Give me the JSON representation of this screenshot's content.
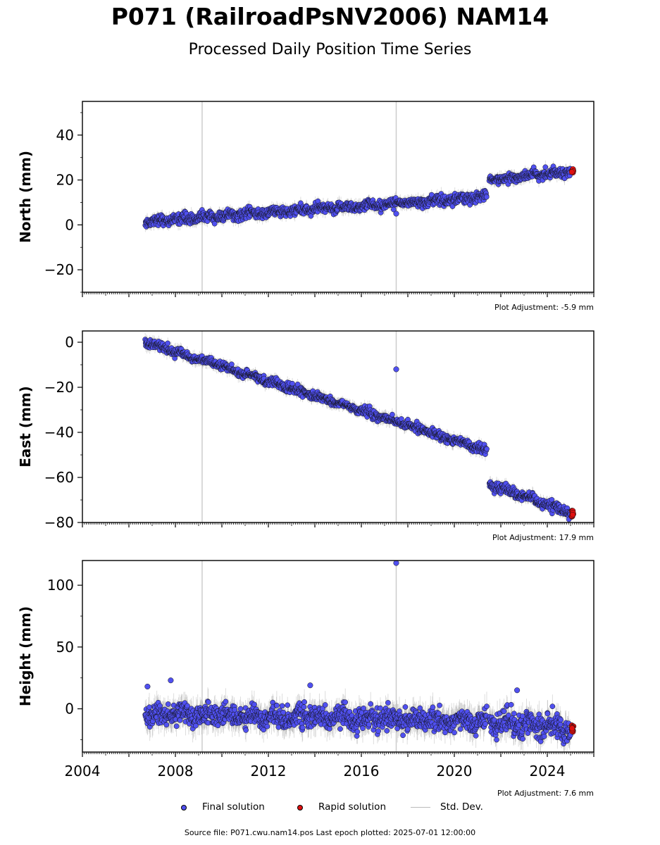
{
  "title": "P071 (RailroadPsNV2006) NAM14",
  "subtitle": "Processed Daily Position Time Series",
  "legend": {
    "final": "Final solution",
    "rapid": "Rapid solution",
    "std": "Std. Dev."
  },
  "footer": "Source file: P071.cwu.nam14.pos  Last epoch plotted: 2025-07-01 12:00:00",
  "colors": {
    "final": "#5050f0",
    "rapid": "#e01010",
    "std": "#aaaaaa",
    "event_line": "#cccccc"
  },
  "chart_data": [
    {
      "type": "scatter",
      "ylabel": "North (mm)",
      "ylim": [
        -30,
        55
      ],
      "yticks": [
        -20,
        0,
        20,
        40
      ],
      "xlim": [
        2004,
        2026
      ],
      "adjustment": "Plot Adjustment: -5.9 mm",
      "event_lines": [
        2009.15,
        2017.5
      ],
      "series": [
        {
          "name": "Final solution",
          "segments": [
            {
              "x0": 2006.7,
              "y0": 1.5,
              "x1": 2021.4,
              "y1": 12.5,
              "noise": 1.6
            },
            {
              "x0": 2021.5,
              "y0": 20.0,
              "x1": 2025.0,
              "y1": 24.0,
              "noise": 1.4
            }
          ],
          "outliers": [
            {
              "x": 2017.5,
              "y": 5
            }
          ]
        },
        {
          "name": "Rapid solution",
          "x_range": [
            2025.0,
            2025.5
          ],
          "y_center": 24,
          "noise": 1.0
        }
      ]
    },
    {
      "type": "scatter",
      "ylabel": "East (mm)",
      "ylim": [
        -80,
        5
      ],
      "yticks": [
        -80,
        -60,
        -40,
        -20,
        0
      ],
      "xlim": [
        2004,
        2026
      ],
      "adjustment": "Plot Adjustment: 17.9 mm",
      "event_lines": [
        2009.15,
        2017.5
      ],
      "series": [
        {
          "name": "Final solution",
          "segments": [
            {
              "x0": 2006.7,
              "y0": 0,
              "x1": 2021.4,
              "y1": -48,
              "noise": 1.3
            },
            {
              "x0": 2021.5,
              "y0": -63,
              "x1": 2025.0,
              "y1": -76,
              "noise": 1.6
            }
          ],
          "outliers": [
            {
              "x": 2017.5,
              "y": -12
            }
          ]
        },
        {
          "name": "Rapid solution",
          "x_range": [
            2025.0,
            2025.5
          ],
          "y_center": -76,
          "noise": 1.5
        }
      ]
    },
    {
      "type": "scatter",
      "ylabel": "Height (mm)",
      "ylim": [
        -35,
        120
      ],
      "yticks": [
        0,
        50,
        100
      ],
      "xlim": [
        2004,
        2026
      ],
      "xticks": [
        2004,
        2008,
        2012,
        2016,
        2020,
        2024
      ],
      "adjustment": "Plot Adjustment: 7.6 mm",
      "event_lines": [
        2009.15,
        2017.5
      ],
      "series": [
        {
          "name": "Final solution",
          "segments": [
            {
              "x0": 2006.7,
              "y0": -4,
              "x1": 2021.4,
              "y1": -10,
              "noise": 6
            },
            {
              "x0": 2021.5,
              "y0": -10,
              "x1": 2025.0,
              "y1": -16,
              "noise": 7
            }
          ],
          "outliers": [
            {
              "x": 2017.5,
              "y": 118
            },
            {
              "x": 2006.8,
              "y": 18
            },
            {
              "x": 2007.8,
              "y": 23
            },
            {
              "x": 2013.8,
              "y": 19
            },
            {
              "x": 2022.7,
              "y": 15
            }
          ]
        },
        {
          "name": "Rapid solution",
          "x_range": [
            2025.0,
            2025.5
          ],
          "y_center": -16,
          "noise": 3
        }
      ]
    }
  ]
}
